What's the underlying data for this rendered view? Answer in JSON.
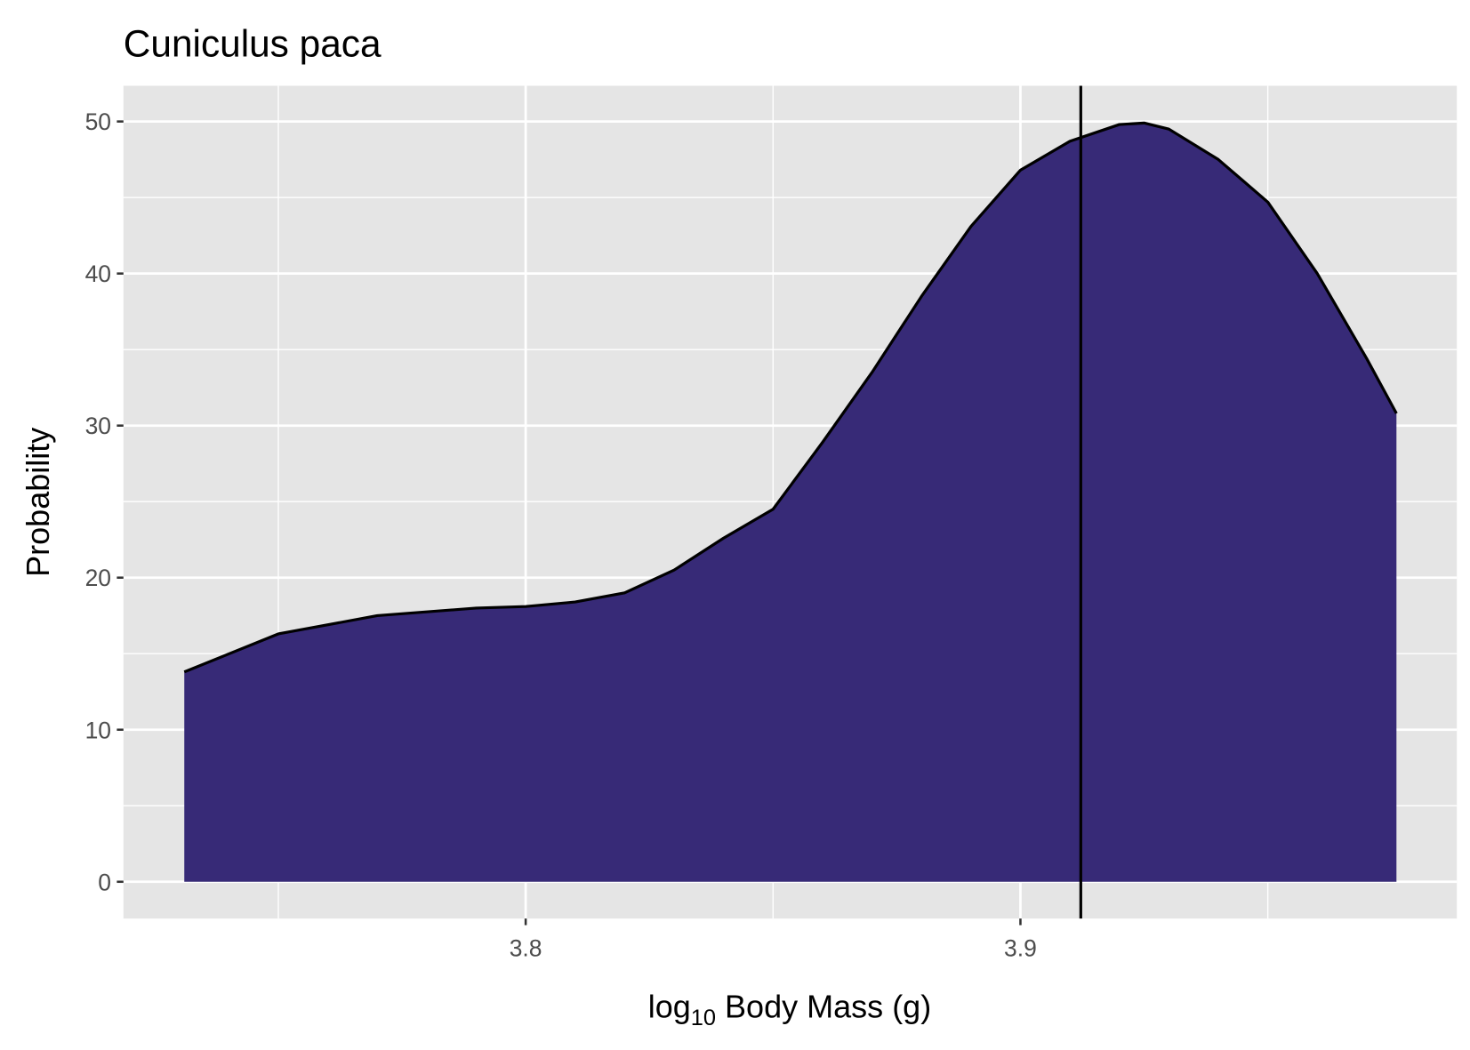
{
  "chart_data": {
    "type": "density",
    "title": "Cuniculus paca",
    "xlabel": [
      "log",
      "10",
      " Body Mass (g)"
    ],
    "ylabel": "Probability",
    "x": [
      3.731,
      3.75,
      3.77,
      3.79,
      3.8,
      3.81,
      3.82,
      3.83,
      3.84,
      3.85,
      3.86,
      3.87,
      3.88,
      3.89,
      3.9,
      3.91,
      3.92,
      3.925,
      3.93,
      3.94,
      3.95,
      3.96,
      3.97,
      3.976
    ],
    "values": [
      13.8,
      16.3,
      17.5,
      18.0,
      18.1,
      18.4,
      19.0,
      20.5,
      22.6,
      24.5,
      28.9,
      33.5,
      38.5,
      43.1,
      46.8,
      48.7,
      49.8,
      49.9,
      49.5,
      47.5,
      44.7,
      40.0,
      34.4,
      30.8
    ],
    "color": "#372a77",
    "vline": 3.9122,
    "xlim": [
      3.7187,
      3.9882
    ],
    "ylim": [
      -2.42,
      52.35
    ],
    "xticks": [
      3.8,
      3.9
    ],
    "yticks": [
      0,
      10,
      20,
      30,
      40,
      50
    ],
    "x_minor_grid": [
      3.75,
      3.85,
      3.95
    ],
    "y_minor_grid": [
      5,
      15,
      25,
      35,
      45
    ],
    "grid": true
  }
}
